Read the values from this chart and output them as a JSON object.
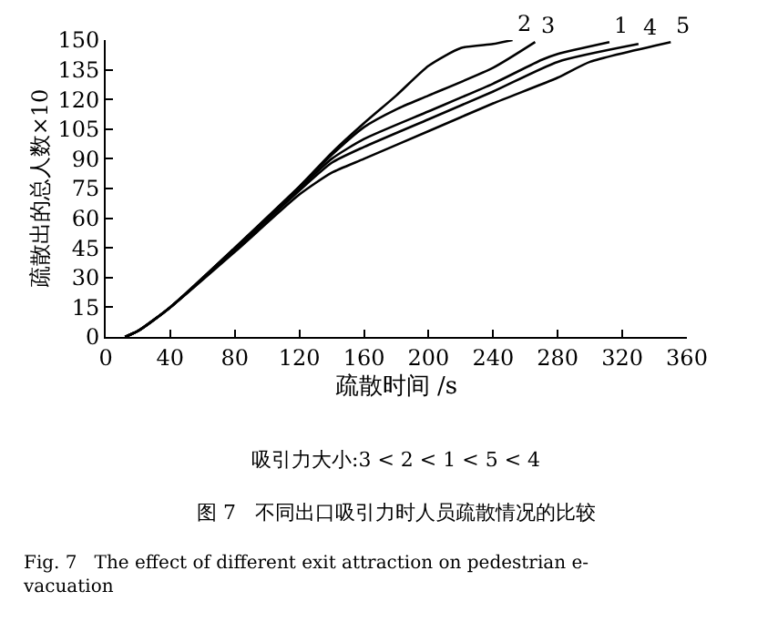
{
  "chart_data": {
    "type": "line",
    "xlabel": "疏散时间 /s",
    "ylabel": "疏散出的总人数×10",
    "xlim": [
      0,
      360
    ],
    "xticks": [
      0,
      40,
      80,
      120,
      160,
      200,
      240,
      280,
      320,
      360
    ],
    "ylim": [
      0,
      150
    ],
    "yticks": [
      0,
      15,
      30,
      45,
      60,
      75,
      90,
      105,
      120,
      135,
      150
    ],
    "marker": "none",
    "line_style": "solid",
    "series": [
      {
        "name": "1",
        "color": "#000000",
        "x": [
          12,
          20,
          40,
          80,
          120,
          140,
          160,
          200,
          240,
          270,
          280,
          312
        ],
        "values": [
          0,
          3,
          15,
          44,
          75,
          90,
          100,
          114,
          128,
          140,
          143,
          149
        ]
      },
      {
        "name": "2",
        "color": "#000000",
        "x": [
          12,
          20,
          40,
          80,
          120,
          140,
          160,
          180,
          200,
          220,
          240,
          252
        ],
        "values": [
          0,
          3,
          15,
          45,
          76,
          93,
          108,
          122,
          137,
          146,
          148,
          150
        ]
      },
      {
        "name": "3",
        "color": "#000000",
        "x": [
          12,
          20,
          40,
          80,
          120,
          140,
          160,
          180,
          200,
          240,
          266
        ],
        "values": [
          0,
          3,
          15,
          45,
          76,
          92,
          106,
          115,
          122,
          136,
          149
        ]
      },
      {
        "name": "4",
        "color": "#000000",
        "x": [
          12,
          20,
          40,
          80,
          120,
          140,
          160,
          200,
          240,
          280,
          330
        ],
        "values": [
          0,
          3,
          15,
          44,
          74,
          88,
          96,
          110,
          124,
          139,
          148
        ]
      },
      {
        "name": "5",
        "color": "#000000",
        "x": [
          12,
          20,
          40,
          80,
          120,
          140,
          160,
          200,
          240,
          280,
          300,
          350
        ],
        "values": [
          0,
          3,
          15,
          43,
          72,
          83,
          90,
          104,
          118,
          131,
          139,
          149
        ]
      }
    ],
    "annotations": [
      "吸引力大小:3 < 2 < 1 < 5 < 4",
      "图 7   不同出口吸引力时人员疏散情况的比较",
      "Fig. 7   The effect of different exit attraction on pedestrian e-\nvacuation"
    ]
  }
}
